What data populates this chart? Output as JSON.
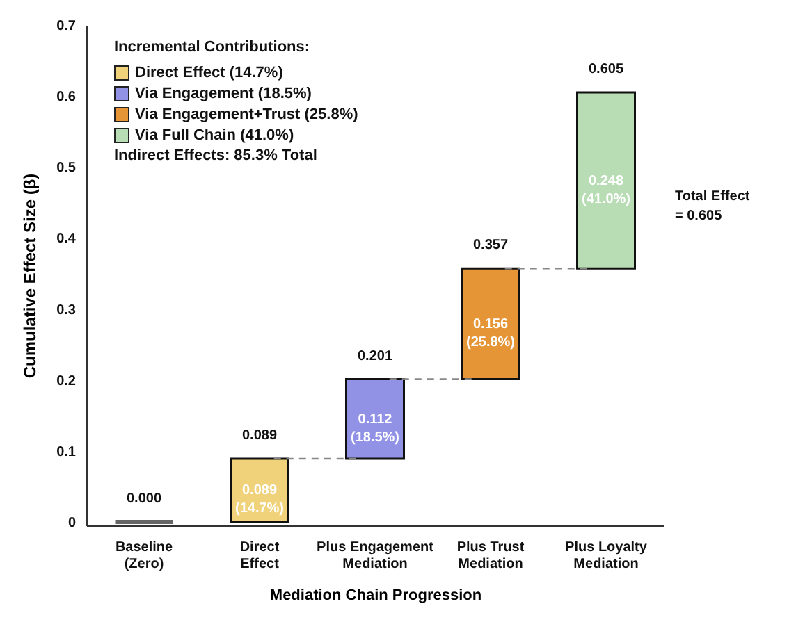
{
  "chart_data": {
    "type": "bar",
    "xlabel": "Mediation Chain Progression",
    "ylabel": "Cumulative Effect Size (β)",
    "legend_title": "Incremental Contributions:",
    "legend": "top left",
    "categories": [
      "Baseline\n(Zero)",
      "Direct\nEffect",
      "Plus Engagement\nMediation",
      "Plus Trust\nMediation",
      "Plus Loyalty\nMediation"
    ],
    "series": [
      {
        "color": "#666666",
        "values": [
          0,
          null,
          null,
          null,
          null
        ],
        "base": [
          0,
          null,
          null,
          null,
          null
        ],
        "value_labels": [
          null,
          null,
          null,
          null,
          null
        ]
      },
      {
        "name": "Direct Effect (14.7%)",
        "color": "#f0d27a",
        "values": [
          null,
          0.089,
          null,
          null,
          null
        ],
        "base": [
          null,
          0,
          null,
          null,
          null
        ],
        "value_labels": [
          null,
          "0.089\n(14.7%)",
          null,
          null,
          null
        ]
      },
      {
        "name": "Via Engagement (18.5%)",
        "color": "#9191e6",
        "values": [
          null,
          null,
          0.112,
          null,
          null
        ],
        "base": [
          null,
          null,
          0.089,
          null,
          null
        ],
        "value_labels": [
          null,
          null,
          "0.112\n(18.5%)",
          null,
          null
        ]
      },
      {
        "name": "Via Engagement+Trust (25.8%)",
        "color": "#e59436",
        "values": [
          null,
          null,
          null,
          0.156,
          null
        ],
        "base": [
          null,
          null,
          null,
          0.201,
          null
        ],
        "value_labels": [
          null,
          null,
          null,
          "0.156\n(25.8%)",
          null
        ]
      },
      {
        "name": "Via Full Chain (41.0%)",
        "color": "#b8dcb3",
        "values": [
          null,
          null,
          null,
          null,
          0.248
        ],
        "base": [
          null,
          null,
          null,
          null,
          0.357
        ],
        "value_labels": [
          null,
          null,
          null,
          null,
          "0.248\n(41.0%)"
        ]
      }
    ],
    "annotations": [
      "Indirect Effects: 85.3% Total",
      "Total Effect\n= 0.605",
      {
        "text": "0.000",
        "x": "Baseline\n(Zero)",
        "y": 0
      },
      {
        "text": "0.089",
        "x": "Direct\nEffect",
        "y": 0.089
      },
      {
        "text": "0.201",
        "x": "Plus Engagement\nMediation",
        "y": 0.201
      },
      {
        "text": "0.357",
        "x": "Plus Trust\nMediation",
        "y": 0.357
      },
      {
        "text": "0.605",
        "x": "Plus Loyalty\nMediation",
        "y": 0.605
      }
    ],
    "ylim": [
      -0.005,
      0.7
    ],
    "yticks": [
      0,
      0.1,
      0.2,
      0.3,
      0.4,
      0.5,
      0.6,
      0.7
    ]
  }
}
